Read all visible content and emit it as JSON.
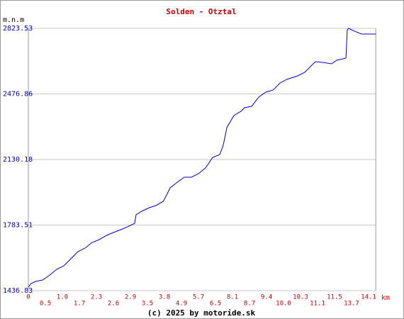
{
  "chart_data": {
    "type": "line",
    "title": "Solden - Otztal",
    "y_label": "m.n.m",
    "x_label": "km",
    "footer": "(c) 2025 by motoride.sk",
    "color": "#0000cc",
    "grid": true,
    "ylim": [
      1436.83,
      2823.53
    ],
    "yticks": [
      1436.83,
      1783.51,
      2130.18,
      2476.86,
      2823.53
    ],
    "xlim": [
      0,
      14.27
    ],
    "xticks": [
      0,
      0.5,
      {
        "value": 1,
        "label": "1.0"
      },
      1.7,
      2.3,
      2.6,
      2.9,
      3.5,
      3.8,
      4.9,
      5.7,
      6.5,
      8.1,
      8.7,
      9.4,
      {
        "value": 10,
        "label": "10.0"
      },
      10.3,
      11.1,
      11.5,
      13.7,
      14.1
    ],
    "x": [
      0,
      0.08,
      0.21,
      0.42,
      0.63,
      0.83,
      1.06,
      1.35,
      1.64,
      1.9,
      2.15,
      2.35,
      2.48,
      2.6,
      2.73,
      2.85,
      3.05,
      3.1,
      3.3,
      3.53,
      3.65,
      3.78,
      3.94,
      4.17,
      4.63,
      5.03,
      5.37,
      5.7,
      6.03,
      6.37,
      6.9,
      7.23,
      7.57,
      8.15,
      8.4,
      8.52,
      8.79,
      9.08,
      9.37,
      9.63,
      9.88,
      10.06,
      10.25,
      10.5,
      10.83,
      11.0,
      11.22,
      11.43,
      11.78,
      12.97,
      13.15,
      13.33,
      13.77,
      13.93,
      14.27
    ],
    "values": [
      1455.6,
      1474.3,
      1485.6,
      1493.0,
      1519.3,
      1549.3,
      1568.0,
      1605.5,
      1643.0,
      1661.7,
      1691.7,
      1706.7,
      1729.2,
      1744.2,
      1759.2,
      1774.2,
      1792.9,
      1837.9,
      1856.6,
      1875.3,
      1886.6,
      1909.1,
      1942.8,
      1980.3,
      2010.3,
      2036.5,
      2036.5,
      2055.3,
      2085.2,
      2141.5,
      2156.4,
      2205.2,
      2298.9,
      2362.6,
      2385.1,
      2403.8,
      2411.3,
      2460.0,
      2486.3,
      2497.5,
      2535.0,
      2553.8,
      2572.5,
      2591.2,
      2628.7,
      2647.5,
      2643.7,
      2636.2,
      2655.0,
      2666.2,
      2816.2,
      2823.5,
      2808.6,
      2793.6,
      2793.6
    ]
  }
}
